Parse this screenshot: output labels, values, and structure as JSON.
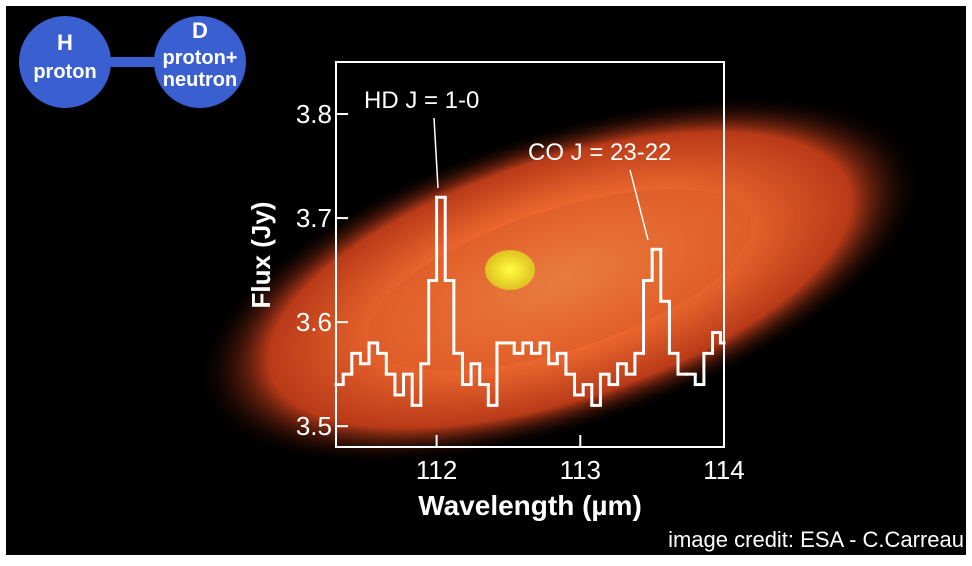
{
  "chart_data": {
    "type": "step",
    "x_label": "Wavelength (µm)",
    "y_label": "Flux (Jy)",
    "x": [
      111.32,
      111.38,
      111.44,
      111.5,
      111.56,
      111.62,
      111.68,
      111.74,
      111.8,
      111.86,
      111.92,
      111.97,
      112.03,
      112.09,
      112.15,
      112.21,
      112.27,
      112.33,
      112.39,
      112.45,
      112.51,
      112.57,
      112.63,
      112.69,
      112.75,
      112.81,
      112.87,
      112.93,
      112.99,
      113.05,
      113.11,
      113.17,
      113.23,
      113.29,
      113.35,
      113.41,
      113.47,
      113.53,
      113.59,
      113.65,
      113.71,
      113.77,
      113.83,
      113.89,
      113.95,
      114.0
    ],
    "series": [
      {
        "color": "#ffffff",
        "values": [
          3.54,
          3.55,
          3.57,
          3.56,
          3.58,
          3.57,
          3.55,
          3.53,
          3.55,
          3.52,
          3.56,
          3.64,
          3.72,
          3.64,
          3.57,
          3.54,
          3.56,
          3.54,
          3.52,
          3.58,
          3.58,
          3.57,
          3.58,
          3.57,
          3.58,
          3.56,
          3.57,
          3.55,
          3.53,
          3.54,
          3.52,
          3.55,
          3.54,
          3.56,
          3.55,
          3.57,
          3.64,
          3.67,
          3.62,
          3.57,
          3.55,
          3.55,
          3.54,
          3.57,
          3.59,
          3.58
        ]
      }
    ],
    "xlim": [
      111.3,
      114
    ],
    "ylim": [
      3.48,
      3.85
    ],
    "xticks": [
      112,
      113,
      114
    ],
    "yticks": [
      3.5,
      3.6,
      3.7,
      3.8
    ],
    "annotations": [
      "HD J = 1-0",
      "CO J = 23-22"
    ]
  },
  "diagram": {
    "nodes": [
      {
        "label": "H",
        "sublabel": "proton"
      },
      {
        "label": "D",
        "sublabel": "proton+",
        "sublabel2": "neutron"
      }
    ]
  },
  "credit": "image credit: ESA - C.Carreau"
}
